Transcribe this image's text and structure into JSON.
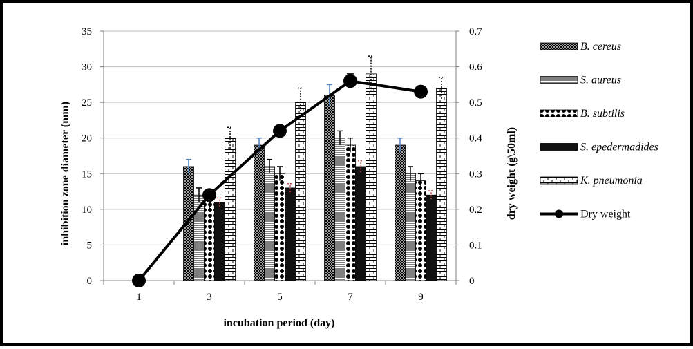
{
  "chart_data": {
    "type": "bar",
    "title": "",
    "xlabel": "incubation period (day)",
    "ylabel_left": "inhibition zone diameter (mm)",
    "ylabel_right": "dry weight (g\\50ml)",
    "categories": [
      "1",
      "3",
      "5",
      "7",
      "9"
    ],
    "ylim_left": [
      0,
      35
    ],
    "yticks_left": [
      "0",
      "5",
      "10",
      "15",
      "20",
      "25",
      "30",
      "35"
    ],
    "ylim_right": [
      0,
      0.7
    ],
    "yticks_right": [
      "0",
      "0.1",
      "0.2",
      "0.3",
      "0.4",
      "0.5",
      "0.6",
      "0.7"
    ],
    "grid": true,
    "legend_position": "right",
    "series": [
      {
        "name": "B. cereus",
        "italic": true,
        "pattern": "cross",
        "values": [
          0,
          16,
          19,
          26,
          19
        ],
        "errors": [
          0,
          1,
          1,
          1.5,
          1
        ],
        "error_color": "#4a7ebb"
      },
      {
        "name": "S. aureus",
        "italic": true,
        "pattern": "hlines",
        "values": [
          0,
          12,
          16,
          20,
          15
        ],
        "errors": [
          0,
          1,
          1,
          1,
          1
        ],
        "error_color": "#000000"
      },
      {
        "name": "B. subtilis",
        "italic": true,
        "pattern": "dots",
        "values": [
          0,
          11,
          15,
          19,
          14
        ],
        "errors": [
          0,
          1,
          1,
          1,
          1
        ],
        "error_color": "#000000"
      },
      {
        "name": "S. epedermadides",
        "italic": true,
        "pattern": "solid",
        "values": [
          0,
          11,
          13,
          16,
          12
        ],
        "errors": [
          0,
          0.6,
          0.6,
          0.8,
          0.6
        ],
        "error_color": "#c0504d"
      },
      {
        "name": "K. pneumonia",
        "italic": true,
        "pattern": "brick",
        "values": [
          0,
          20,
          25,
          29,
          27
        ],
        "errors": [
          0,
          1.5,
          2,
          2.5,
          1.5
        ],
        "error_color": "#000000"
      }
    ],
    "line_series": {
      "name": "Dry weight",
      "axis": "right",
      "values": [
        0,
        0.24,
        0.42,
        0.56,
        0.53
      ],
      "errors": [
        0,
        0.01,
        0.015,
        0.02,
        0.015
      ]
    }
  }
}
